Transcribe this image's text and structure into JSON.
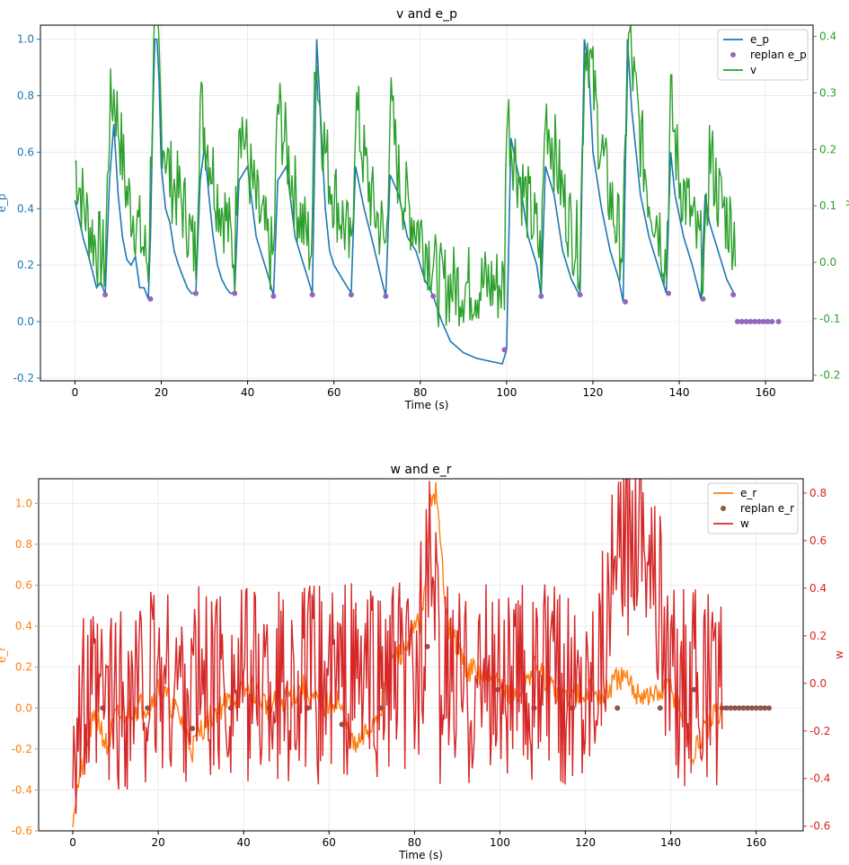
{
  "chart_data": [
    {
      "type": "line",
      "title": "v and e_p",
      "xlabel": "Time (s)",
      "ylabel_left": "e_p",
      "ylabel_right": "v",
      "xlim": [
        -8,
        171
      ],
      "ylim_left": [
        -0.21,
        1.05
      ],
      "ylim_right": [
        -0.21,
        0.42
      ],
      "xticks": [
        0,
        20,
        40,
        60,
        80,
        100,
        120,
        140,
        160
      ],
      "yticks_left": [
        -0.2,
        0.0,
        0.2,
        0.4,
        0.6,
        0.8,
        1.0
      ],
      "yticks_right": [
        -0.2,
        -0.1,
        0.0,
        0.1,
        0.2,
        0.3,
        0.4
      ],
      "grid": true,
      "legend": {
        "placement": "top-right",
        "entries": [
          "e_p",
          "replan e_p",
          "v"
        ]
      },
      "colors": {
        "e_p": "#1f77b4",
        "replan": "#9467bd",
        "v": "#2ca02c",
        "left_axis": "#1f77b4",
        "right_axis": "#2ca02c"
      },
      "series": [
        {
          "name": "e_p",
          "axis": "left",
          "kind": "line",
          "x": [
            0,
            1,
            2,
            3,
            4,
            5,
            6,
            7,
            8,
            9,
            10,
            11,
            12,
            13,
            14,
            15,
            16,
            17,
            17.5,
            18,
            18.5,
            19,
            19.5,
            20,
            21,
            22,
            23,
            24,
            25,
            26,
            27,
            28,
            29,
            30,
            31,
            32,
            33,
            34,
            35,
            36,
            37,
            38,
            40,
            42,
            44,
            45,
            46,
            47,
            49,
            51,
            53,
            55,
            56,
            57,
            58,
            59,
            60,
            62,
            64,
            65,
            67,
            69,
            71,
            72,
            73,
            75,
            77,
            79,
            81,
            83,
            85,
            87,
            90,
            93,
            96,
            99,
            100,
            101,
            103,
            105,
            107,
            108,
            109,
            111,
            113,
            115,
            117,
            118,
            119,
            120,
            122,
            124,
            126,
            127,
            128,
            129,
            131,
            133,
            135,
            137,
            138,
            139,
            141,
            143,
            145,
            146,
            147,
            149,
            151,
            153
          ],
          "y": [
            0.43,
            0.36,
            0.29,
            0.24,
            0.18,
            0.12,
            0.14,
            0.095,
            0.5,
            0.7,
            0.45,
            0.3,
            0.22,
            0.2,
            0.23,
            0.12,
            0.12,
            0.08,
            0.3,
            0.7,
            1.0,
            1.0,
            0.85,
            0.55,
            0.4,
            0.35,
            0.25,
            0.2,
            0.16,
            0.12,
            0.1,
            0.1,
            0.5,
            0.62,
            0.45,
            0.3,
            0.2,
            0.15,
            0.12,
            0.1,
            0.1,
            0.5,
            0.55,
            0.3,
            0.2,
            0.15,
            0.09,
            0.5,
            0.55,
            0.3,
            0.2,
            0.1,
            1.0,
            0.7,
            0.4,
            0.25,
            0.2,
            0.15,
            0.1,
            0.55,
            0.4,
            0.28,
            0.15,
            0.09,
            0.52,
            0.45,
            0.3,
            0.25,
            0.15,
            0.09,
            0.0,
            -0.07,
            -0.11,
            -0.13,
            -0.14,
            -0.15,
            -0.1,
            0.65,
            0.5,
            0.3,
            0.2,
            0.09,
            0.55,
            0.45,
            0.25,
            0.15,
            0.09,
            1.0,
            0.9,
            0.6,
            0.4,
            0.25,
            0.15,
            0.07,
            1.0,
            0.75,
            0.45,
            0.3,
            0.2,
            0.1,
            0.6,
            0.45,
            0.3,
            0.2,
            0.08,
            0.45,
            0.35,
            0.25,
            0.15,
            0.09
          ]
        },
        {
          "name": "replan e_p",
          "axis": "left",
          "kind": "scatter",
          "x": [
            7,
            17.5,
            28,
            37,
            46,
            55,
            64,
            72,
            83,
            99.5,
            108,
            117,
            127.5,
            137.5,
            145.5,
            152.5,
            153.5,
            154.5,
            155.5,
            156.5,
            157.5,
            158.5,
            159.5,
            160.5,
            161.5,
            163
          ],
          "y": [
            0.095,
            0.08,
            0.1,
            0.1,
            0.09,
            0.095,
            0.095,
            0.09,
            0.09,
            -0.1,
            0.09,
            0.095,
            0.07,
            0.1,
            0.08,
            0.095,
            0.0,
            0.0,
            0.0,
            0.0,
            0.0,
            0.0,
            0.0,
            0.0,
            0.0,
            0.0
          ]
        },
        {
          "name": "v",
          "axis": "right",
          "kind": "noisy",
          "range": [
            0,
            153
          ],
          "seed": 7,
          "x": [
            0,
            2,
            4,
            5,
            7,
            8,
            9,
            10,
            12,
            14,
            16,
            17,
            18,
            18.5,
            19,
            19.5,
            20,
            22,
            24,
            26,
            27,
            28,
            29,
            31,
            33,
            35,
            36,
            37,
            38,
            40,
            42,
            44,
            45,
            46,
            47,
            49,
            51,
            53,
            55,
            55.5,
            56,
            57,
            59,
            61,
            63,
            64,
            65,
            67,
            69,
            71,
            72,
            73,
            75,
            77,
            79,
            81,
            82,
            83,
            84,
            99,
            99.5,
            100,
            101,
            103,
            105,
            107,
            108,
            109,
            111,
            113,
            115,
            117,
            118,
            118.5,
            119,
            121,
            123,
            125,
            127,
            128,
            128.5,
            129,
            131,
            133,
            135,
            137,
            138,
            140,
            142,
            144,
            146,
            147,
            149,
            151,
            153
          ],
          "y": [
            0.18,
            0.1,
            0.05,
            0.03,
            0.0,
            0.26,
            0.3,
            0.25,
            0.12,
            0.08,
            0.02,
            0.0,
            0.3,
            0.4,
            0.4,
            0.35,
            0.25,
            0.15,
            0.12,
            0.08,
            0.03,
            0.02,
            0.28,
            0.2,
            0.12,
            0.08,
            0.04,
            0.01,
            0.28,
            0.18,
            0.1,
            0.05,
            0.02,
            0.0,
            0.28,
            0.2,
            0.12,
            0.06,
            0.02,
            0.4,
            0.35,
            0.25,
            0.15,
            0.1,
            0.05,
            0.0,
            0.28,
            0.18,
            0.1,
            0.06,
            0.02,
            0.28,
            0.15,
            0.1,
            0.07,
            0.04,
            0.02,
            0.0,
            -0.04,
            -0.04,
            -0.04,
            0.28,
            0.22,
            0.15,
            0.1,
            0.05,
            0.0,
            0.27,
            0.2,
            0.12,
            0.06,
            0.02,
            0.35,
            0.4,
            0.38,
            0.25,
            0.15,
            0.08,
            0.02,
            0.35,
            0.4,
            0.35,
            0.22,
            0.12,
            0.08,
            0.0,
            0.28,
            0.15,
            0.1,
            0.04,
            0.0,
            0.2,
            0.12,
            0.08,
            0.05
          ]
        }
      ]
    },
    {
      "type": "line",
      "title": "w and e_r",
      "xlabel": "Time (s)",
      "ylabel_left": "e_r",
      "ylabel_right": "w",
      "xlim": [
        -8,
        171
      ],
      "ylim_left": [
        -0.6,
        1.12
      ],
      "ylim_right": [
        -0.62,
        0.86
      ],
      "xticks": [
        0,
        20,
        40,
        60,
        80,
        100,
        120,
        140,
        160
      ],
      "yticks_left": [
        -0.6,
        -0.4,
        -0.2,
        0.0,
        0.2,
        0.4,
        0.6,
        0.8,
        1.0
      ],
      "yticks_right": [
        -0.6,
        -0.4,
        -0.2,
        0.0,
        0.2,
        0.4,
        0.6,
        0.8
      ],
      "grid": true,
      "legend": {
        "placement": "top-right",
        "entries": [
          "e_r",
          "replan e_r",
          "w"
        ]
      },
      "colors": {
        "e_r": "#ff7f0e",
        "replan": "#8c564b",
        "w": "#d62728",
        "left_axis": "#ff7f0e",
        "right_axis": "#d62728"
      },
      "series": [
        {
          "name": "e_r",
          "axis": "left",
          "kind": "noisy",
          "range": [
            0,
            152
          ],
          "seed": 21,
          "x": [
            0,
            1,
            2,
            3,
            4,
            6,
            8,
            10,
            14,
            18,
            20,
            22,
            26,
            28,
            30,
            34,
            38,
            42,
            46,
            50,
            54,
            58,
            62,
            64,
            66,
            68,
            70,
            72,
            74,
            78,
            82,
            83,
            84,
            85,
            86,
            88,
            92,
            96,
            100,
            104,
            108,
            112,
            116,
            120,
            124,
            128,
            132,
            136,
            140,
            144,
            145,
            146,
            147,
            149,
            150,
            152
          ],
          "y": [
            -0.52,
            -0.4,
            -0.3,
            -0.22,
            -0.1,
            -0.05,
            -0.2,
            -0.05,
            0.0,
            0.02,
            0.1,
            0.05,
            -0.08,
            -0.2,
            -0.1,
            0.0,
            0.05,
            0.1,
            0.0,
            0.05,
            0.1,
            0.0,
            0.05,
            -0.1,
            -0.2,
            -0.15,
            -0.08,
            0.0,
            0.2,
            0.3,
            0.45,
            0.8,
            1.05,
            1.05,
            0.8,
            0.4,
            0.2,
            0.15,
            0.1,
            0.05,
            0.2,
            0.1,
            0.05,
            0.1,
            0.05,
            0.15,
            0.08,
            0.05,
            0.1,
            -0.1,
            -0.25,
            -0.2,
            -0.15,
            -0.1,
            -0.05,
            0.0
          ]
        },
        {
          "name": "replan e_r",
          "axis": "left",
          "kind": "scatter",
          "x": [
            7,
            17.5,
            28,
            37,
            46,
            55,
            63,
            72,
            83,
            99.5,
            108,
            117,
            127.5,
            137.5,
            145.5,
            152,
            153,
            154,
            155,
            156,
            157,
            158,
            159,
            160,
            161,
            162,
            163
          ],
          "y": [
            0.0,
            0.0,
            -0.1,
            0.0,
            0.0,
            0.0,
            -0.08,
            0.0,
            0.3,
            0.09,
            0.0,
            0.0,
            0.0,
            0.0,
            0.09,
            0.0,
            0.0,
            0.0,
            0.0,
            0.0,
            0.0,
            0.0,
            0.0,
            0.0,
            0.0,
            0.0,
            0.0
          ]
        },
        {
          "name": "w",
          "axis": "right",
          "kind": "noisy",
          "range": [
            0,
            152
          ],
          "seed": 99,
          "x": [
            0,
            20,
            40,
            60,
            80,
            84,
            86,
            100,
            120,
            133,
            140,
            152
          ],
          "y": [
            -0.15,
            0.0,
            0.0,
            0.0,
            0.0,
            0.5,
            0.0,
            0.0,
            0.0,
            0.8,
            0.0,
            -0.05
          ]
        }
      ]
    }
  ]
}
